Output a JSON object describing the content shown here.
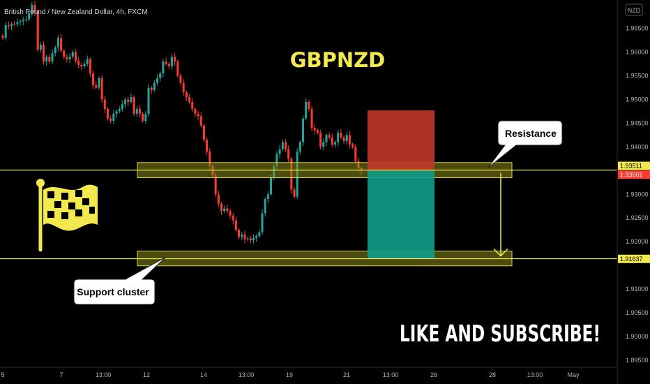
{
  "header": {
    "title": "British Pound / New Zealand Dollar, 4h, FXCM",
    "currency_badge": "NZD"
  },
  "annotations": {
    "symbol": "GBPNZD",
    "resistance": "Resistance",
    "support": "Support cluster",
    "cta": "LIKE AND SUBSCRIBE!",
    "flag_icon": "checkered-flag-icon"
  },
  "colors": {
    "up": "#26a69a",
    "up_alt": "#089981",
    "down": "#ff3b30",
    "accent": "#f2e94e",
    "zone": "#8a8a1a",
    "stop": "#c0392b",
    "target": "#0f9d8b"
  },
  "chart_data": {
    "type": "candlestick",
    "title": "",
    "y_axis": {
      "ticks": [
        "1.96500",
        "1.96000",
        "1.95500",
        "1.95000",
        "1.94500",
        "1.94000",
        "1.93000",
        "1.92500",
        "1.92000",
        "1.91000",
        "1.90500",
        "1.90000",
        "1.89500"
      ],
      "ylim": [
        1.8935,
        1.971
      ]
    },
    "x_axis": {
      "ticks": [
        "5",
        "7",
        "13:00",
        "12",
        "14",
        "13:00",
        "19",
        "21",
        "13:00",
        "26",
        "28",
        "13:00",
        "May"
      ]
    },
    "price_labels": [
      {
        "text": "1.93511",
        "value": 1.93511,
        "color": "#f2e94e",
        "text_color": "#000"
      },
      {
        "text": "1.93501",
        "value": 1.93501,
        "color": "#ff3b30",
        "text_color": "#fff"
      },
      {
        "text": "1.91637",
        "value": 1.91637,
        "color": "#f2e94e",
        "text_color": "#000"
      }
    ],
    "levels": {
      "resistance": 1.9351,
      "support": 1.9164
    },
    "resistance_zone": [
      1.9335,
      1.9367
    ],
    "support_zone": [
      1.9149,
      1.918
    ],
    "position": {
      "entry": 1.935,
      "stop": 1.9477,
      "target": 1.9164
    },
    "candles_close": [
      1.963,
      1.9657,
      1.9655,
      1.966,
      1.9659,
      1.9663,
      1.9665,
      1.9668,
      1.9669,
      1.9682,
      1.97,
      1.9685,
      1.9605,
      1.9615,
      1.958,
      1.959,
      1.958,
      1.9598,
      1.961,
      1.963,
      1.9603,
      1.959,
      1.9585,
      1.959,
      1.96,
      1.9582,
      1.9573,
      1.957,
      1.9575,
      1.9585,
      1.9555,
      1.953,
      1.9525,
      1.9545,
      1.95,
      1.948,
      1.946,
      1.9455,
      1.947,
      1.9475,
      1.948,
      1.949,
      1.95,
      1.9495,
      1.9505,
      1.947,
      1.948,
      1.947,
      1.9455,
      1.947,
      1.9525,
      1.952,
      1.9535,
      1.9545,
      1.9555,
      1.958,
      1.9575,
      1.957,
      1.959,
      1.958,
      1.955,
      1.9535,
      1.9515,
      1.9505,
      1.9495,
      1.948,
      1.947,
      1.9465,
      1.9445,
      1.9415,
      1.939,
      1.936,
      1.934,
      1.93,
      1.928,
      1.9265,
      1.927,
      1.9265,
      1.9255,
      1.9245,
      1.9225,
      1.921,
      1.9215,
      1.9205,
      1.9207,
      1.9203,
      1.9208,
      1.9212,
      1.922,
      1.926,
      1.929,
      1.93,
      1.9335,
      1.936,
      1.9385,
      1.9395,
      1.941,
      1.9395,
      1.9375,
      1.931,
      1.9295,
      1.939,
      1.941,
      1.946,
      1.9495,
      1.948,
      1.944,
      1.9435,
      1.943,
      1.94,
      1.941,
      1.9425,
      1.942,
      1.9405,
      1.941,
      1.943,
      1.942,
      1.9412,
      1.9425,
      1.9405,
      1.94,
      1.937,
      1.9355,
      1.935
    ],
    "candles_range": [
      0.0012,
      0.0025
    ],
    "arrow": {
      "from": 1.9345,
      "to": 1.917
    }
  }
}
